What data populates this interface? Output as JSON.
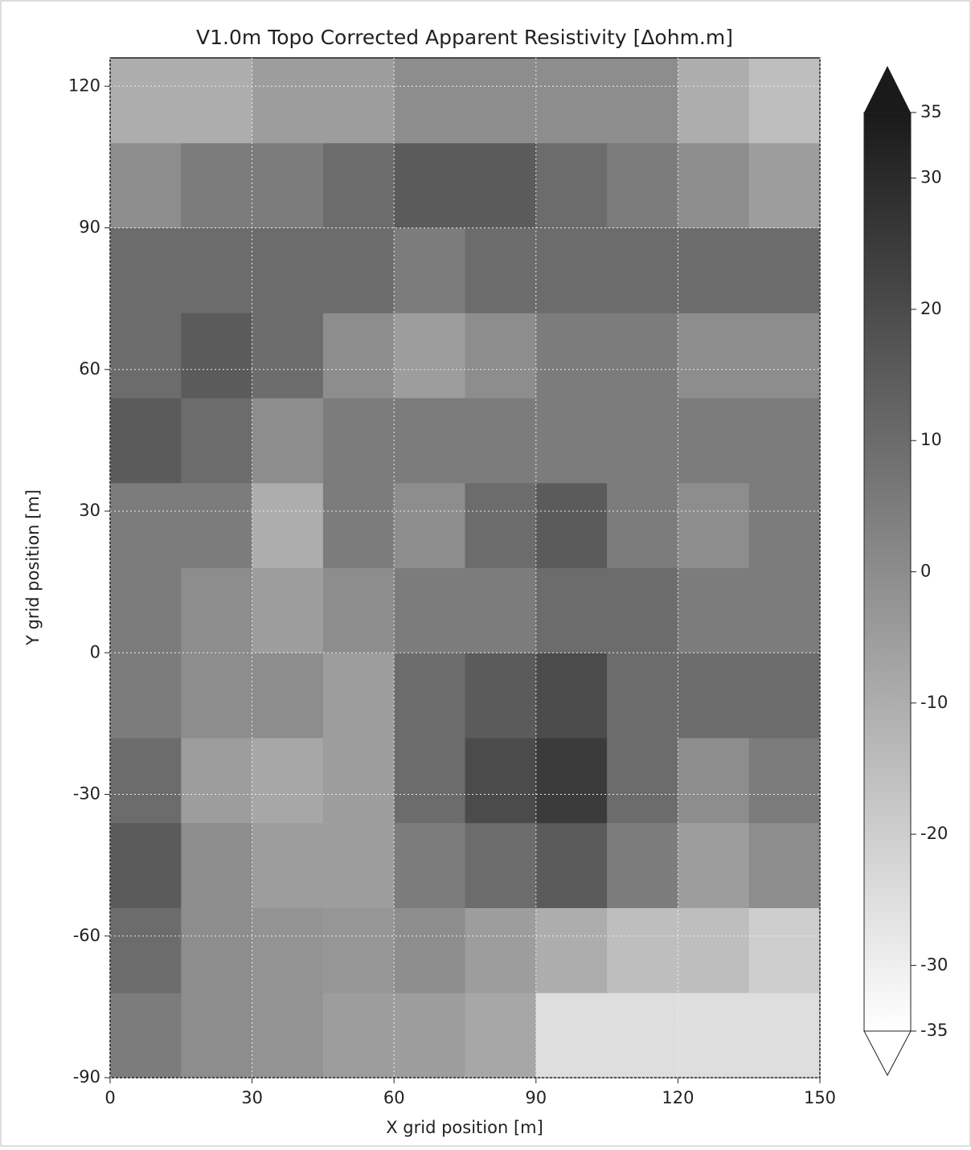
{
  "chart_data": {
    "type": "heatmap",
    "title": "V1.0m Topo Corrected Apparent Resistivity [Δohm.m]",
    "x_label": "X grid position [m]",
    "y_label": "Y grid position [m]",
    "x_bins": [
      0,
      15,
      30,
      45,
      60,
      75,
      90,
      105,
      120,
      135,
      150
    ],
    "y_bins": [
      -90,
      -72,
      -54,
      -36,
      -18,
      0,
      18,
      36,
      54,
      72,
      90,
      108,
      126
    ],
    "values": [
      [
        5,
        0,
        -2,
        -5,
        -5,
        -8,
        -25,
        -25,
        -25,
        -25
      ],
      [
        10,
        0,
        -2,
        -3,
        0,
        -5,
        -10,
        -15,
        -15,
        -20
      ],
      [
        15,
        0,
        -5,
        -5,
        5,
        10,
        15,
        5,
        -5,
        0
      ],
      [
        10,
        -5,
        -8,
        -5,
        10,
        20,
        25,
        10,
        0,
        5
      ],
      [
        5,
        0,
        0,
        -5,
        10,
        15,
        20,
        10,
        10,
        10
      ],
      [
        5,
        0,
        -5,
        0,
        5,
        5,
        10,
        10,
        5,
        5
      ],
      [
        5,
        5,
        -10,
        5,
        0,
        10,
        15,
        5,
        0,
        5
      ],
      [
        15,
        10,
        0,
        5,
        5,
        5,
        5,
        5,
        5,
        5
      ],
      [
        10,
        15,
        10,
        0,
        -5,
        0,
        5,
        5,
        0,
        0
      ],
      [
        10,
        10,
        10,
        10,
        5,
        10,
        10,
        10,
        10,
        10
      ],
      [
        0,
        5,
        5,
        10,
        15,
        15,
        10,
        5,
        0,
        -5
      ],
      [
        -10,
        -10,
        -5,
        -5,
        0,
        0,
        0,
        0,
        -10,
        -15
      ]
    ],
    "xlim": [
      0,
      150
    ],
    "xticks": [
      0,
      30,
      60,
      90,
      120,
      150
    ],
    "ylim": [
      -90,
      126
    ],
    "yticks": [
      -90,
      -60,
      -30,
      0,
      30,
      60,
      90,
      120
    ],
    "clim": [
      -35,
      35
    ],
    "cticks": [
      -35,
      -30,
      -20,
      -10,
      0,
      10,
      20,
      30,
      35
    ],
    "low_color": "#ffffff",
    "high_color": "#1a1a1a",
    "colorbar_extend": "both",
    "grid": true
  }
}
